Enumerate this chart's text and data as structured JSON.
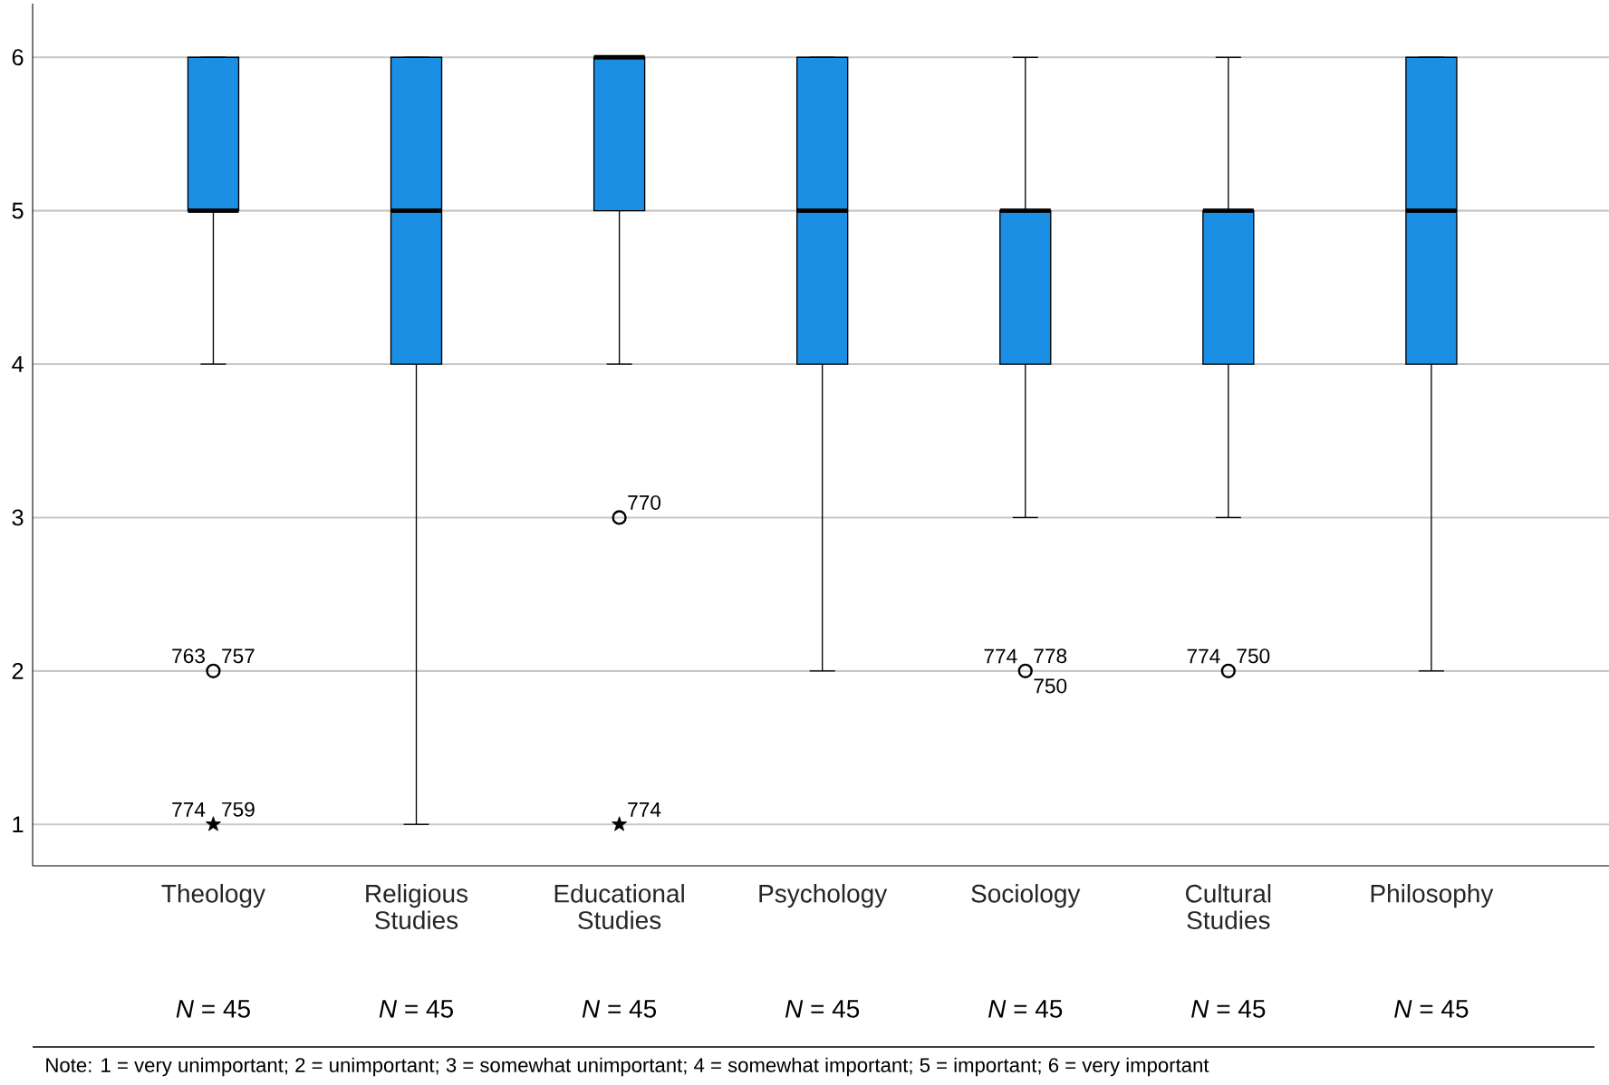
{
  "chart_data": {
    "type": "box",
    "categories": [
      "Theology",
      "Religious Studies",
      "Educational Studies",
      "Psychology",
      "Sociology",
      "Cultural Studies",
      "Philosophy"
    ],
    "series": [
      {
        "color": "#1b8fe3",
        "boxes": [
          {
            "low": 4,
            "q1": 5,
            "median": 5,
            "q3": 6,
            "high": 6
          },
          {
            "low": 1,
            "q1": 4,
            "median": 5,
            "q3": 6,
            "high": 6
          },
          {
            "low": 4,
            "q1": 5,
            "median": 6,
            "q3": 6,
            "high": 6
          },
          {
            "low": 2,
            "q1": 4,
            "median": 5,
            "q3": 6,
            "high": 6
          },
          {
            "low": 3,
            "q1": 4,
            "median": 5,
            "q3": 5,
            "high": 6
          },
          {
            "low": 3,
            "q1": 4,
            "median": 5,
            "q3": 5,
            "high": 6
          },
          {
            "low": 2,
            "q1": 4,
            "median": 5,
            "q3": 6,
            "high": 6
          }
        ]
      },
      {
        "type": "scatter",
        "marker": "circle",
        "color": "#000000",
        "x": [
          "Theology",
          "Educational Studies",
          "Sociology",
          "Cultural Studies"
        ],
        "values": [
          2,
          3,
          2,
          2
        ]
      },
      {
        "type": "scatter",
        "marker": "star",
        "color": "#000000",
        "x": [
          "Theology",
          "Educational Studies"
        ],
        "values": [
          1,
          1
        ]
      }
    ],
    "ylim": [
      0.73,
      6.35
    ],
    "yticks": [
      1,
      2,
      3,
      4,
      5,
      6
    ],
    "grid": "y",
    "annotations": [
      {
        "text": "763",
        "x": "Theology",
        "y": 2
      },
      {
        "text": "757",
        "x": "Theology",
        "y": 2
      },
      {
        "text": "774",
        "x": "Theology",
        "y": 1
      },
      {
        "text": "759",
        "x": "Theology",
        "y": 1
      },
      {
        "text": "770",
        "x": "Educational Studies",
        "y": 3
      },
      {
        "text": "774",
        "x": "Educational Studies",
        "y": 1
      },
      {
        "text": "774",
        "x": "Sociology",
        "y": 2
      },
      {
        "text": "778",
        "x": "Sociology",
        "y": 2
      },
      {
        "text": "750",
        "x": "Sociology",
        "y": 2
      },
      {
        "text": "774",
        "x": "Cultural Studies",
        "y": 2
      },
      {
        "text": "750",
        "x": "Cultural Studies",
        "y": 2
      },
      "*N* = 45",
      "*N* = 45",
      "*N* = 45",
      "*N* = 45",
      "*N* = 45",
      "*N* = 45",
      "*N* = 45",
      "Note: 1 = very unimportant; 2 = unimportant; 3 = somewhat unimportant; 4 = somewhat important; 5 = important; 6 = very important"
    ]
  }
}
